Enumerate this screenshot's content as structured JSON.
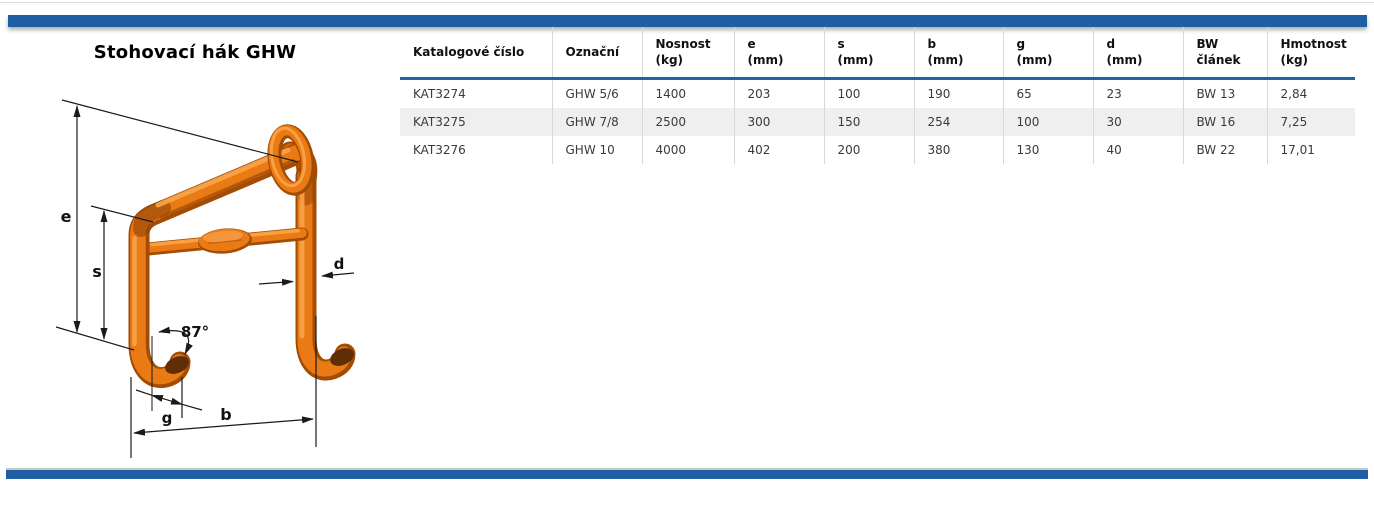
{
  "page": {
    "title": "Stohovací hák GHW"
  },
  "diagram": {
    "description": "orange stacking hook 3d drawing with dimension arrows",
    "labels": {
      "e": "e",
      "s": "s",
      "d": "d",
      "angle": "87°",
      "g": "g",
      "b": "b"
    },
    "colors": {
      "hook_orange": "#ea7a14",
      "hook_dark": "#a24c05",
      "hook_highlight": "#f9a449"
    }
  },
  "table": {
    "columns": [
      "Katalogové číslo",
      "Označní",
      "Nosnost\n(kg)",
      "e\n(mm)",
      "s\n(mm)",
      "b\n(mm)",
      "g\n(mm)",
      "d\n(mm)",
      "BW\nčlánek",
      "Hmotnost\n(kg)"
    ],
    "rows": [
      [
        "KAT3274",
        "GHW 5/6",
        "1400",
        "203",
        "100",
        "190",
        "65",
        "23",
        "BW 13",
        "2,84"
      ],
      [
        "KAT3275",
        "GHW 7/8",
        "2500",
        "300",
        "150",
        "254",
        "100",
        "30",
        "BW 16",
        "7,25"
      ],
      [
        "KAT3276",
        "GHW 10",
        "4000",
        "402",
        "200",
        "380",
        "130",
        "40",
        "BW 22",
        "17,01"
      ]
    ]
  },
  "colors": {
    "accent_blue": "#1e5fa3",
    "alt_row_gray": "#efefef",
    "separator_gray": "#d8d8d8"
  }
}
